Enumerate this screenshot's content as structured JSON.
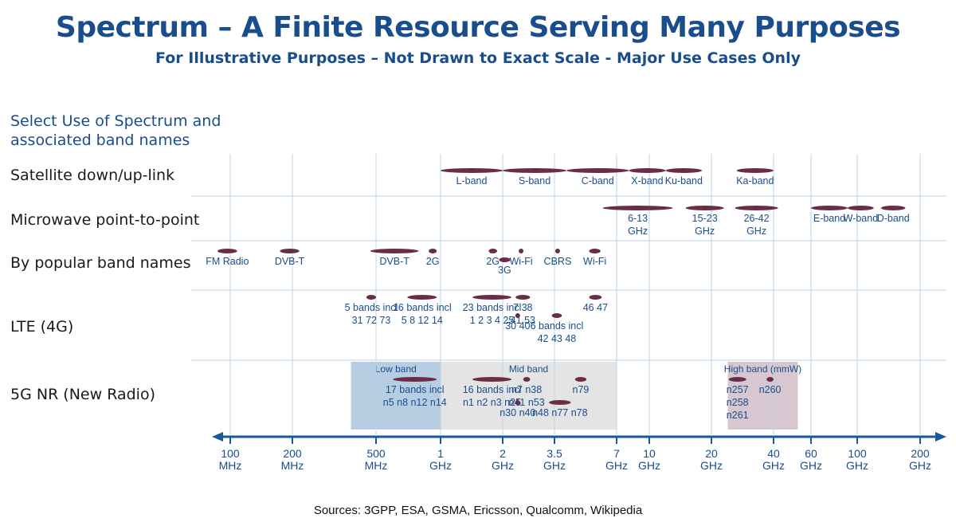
{
  "title": "Spectrum – A Finite Resource Serving Many Purposes",
  "subtitle": "For Illustrative Purposes – Not Drawn to Exact Scale - Major Use Cases Only",
  "heading": {
    "line1": "Select Use of Spectrum and",
    "line2": "associated band names"
  },
  "rows": {
    "satellite": "Satellite down/up-link",
    "microwave": "Microwave point-to-point",
    "popular": "By popular band names",
    "lte": "LTE (4G)",
    "nr": "5G NR (New Radio)"
  },
  "regions": [
    {
      "label": "Low band",
      "from": 380,
      "to": 1000,
      "color": "#b7cde1"
    },
    {
      "label": "Mid band",
      "from": 1000,
      "to": 7000,
      "color": "#e4e4e4"
    },
    {
      "label": "High band (mmW)",
      "from": 24000,
      "to": 52000,
      "color": "#d6c7d1"
    }
  ],
  "axis": {
    "unit": "MHz",
    "scale": "log",
    "ticks": [
      {
        "value": 100,
        "line1": "100",
        "line2": "MHz"
      },
      {
        "value": 200,
        "line1": "200",
        "line2": "MHz"
      },
      {
        "value": 500,
        "line1": "500",
        "line2": "MHz"
      },
      {
        "value": 1000,
        "line1": "1",
        "line2": "GHz"
      },
      {
        "value": 2000,
        "line1": "2",
        "line2": "GHz"
      },
      {
        "value": 3500,
        "line1": "3.5",
        "line2": "GHz"
      },
      {
        "value": 7000,
        "line1": "7",
        "line2": "GHz"
      },
      {
        "value": 10000,
        "line1": "10",
        "line2": "GHz"
      },
      {
        "value": 20000,
        "line1": "20",
        "line2": "GHz"
      },
      {
        "value": 40000,
        "line1": "40",
        "line2": "GHz"
      },
      {
        "value": 60000,
        "line1": "60",
        "line2": "GHz"
      },
      {
        "value": 100000,
        "line1": "100",
        "line2": "GHz"
      },
      {
        "value": 200000,
        "line1": "200",
        "line2": "GHz"
      }
    ]
  },
  "bands": [
    {
      "row": "satellite",
      "from": 1000,
      "to": 2000,
      "text": [
        "L-band"
      ]
    },
    {
      "row": "satellite",
      "from": 2000,
      "to": 4000,
      "text": [
        "S-band"
      ]
    },
    {
      "row": "satellite",
      "from": 4000,
      "to": 8000,
      "text": [
        "C-band"
      ]
    },
    {
      "row": "satellite",
      "from": 8000,
      "to": 12000,
      "text": [
        "X-band"
      ]
    },
    {
      "row": "satellite",
      "from": 12000,
      "to": 18000,
      "text": [
        "Ku-band"
      ]
    },
    {
      "row": "satellite",
      "from": 26500,
      "to": 40000,
      "text": [
        "Ka-band"
      ]
    },
    {
      "row": "microwave",
      "from": 6000,
      "to": 13000,
      "text": [
        "6-13",
        "GHz"
      ]
    },
    {
      "row": "microwave",
      "from": 15000,
      "to": 23000,
      "text": [
        "15-23",
        "GHz"
      ]
    },
    {
      "row": "microwave",
      "from": 26000,
      "to": 42000,
      "text": [
        "26-42",
        "GHz"
      ]
    },
    {
      "row": "microwave",
      "from": 60000,
      "to": 90000,
      "text": [
        "E-band"
      ]
    },
    {
      "row": "microwave",
      "from": 90000,
      "to": 120000,
      "text": [
        "W-band"
      ]
    },
    {
      "row": "microwave",
      "from": 130000,
      "to": 170000,
      "text": [
        "D-band"
      ]
    },
    {
      "row": "popular",
      "from": 88,
      "to": 108,
      "text": [
        "FM Radio"
      ]
    },
    {
      "row": "popular",
      "from": 174,
      "to": 216,
      "text": [
        "DVB-T"
      ]
    },
    {
      "row": "popular",
      "from": 470,
      "to": 790,
      "text": [
        "DVB-T"
      ]
    },
    {
      "row": "popular",
      "from": 880,
      "to": 960,
      "text": [
        "2G"
      ]
    },
    {
      "row": "popular",
      "from": 1710,
      "to": 1880,
      "text": [
        "2G"
      ]
    },
    {
      "row": "popular",
      "from": 2400,
      "to": 2480,
      "text": [
        "Wi-Fi"
      ]
    },
    {
      "row": "popular",
      "from": 1920,
      "to": 2170,
      "text": [
        "3G"
      ],
      "sub": 1
    },
    {
      "row": "popular",
      "from": 3550,
      "to": 3700,
      "text": [
        "CBRS"
      ]
    },
    {
      "row": "popular",
      "from": 5150,
      "to": 5850,
      "text": [
        "Wi-Fi"
      ]
    },
    {
      "row": "lte",
      "from": 450,
      "to": 500,
      "text": [
        "5 bands incl",
        "31 72 73"
      ]
    },
    {
      "row": "lte",
      "from": 700,
      "to": 960,
      "text": [
        "16 bands incl",
        "5 8 12 14"
      ]
    },
    {
      "row": "lte",
      "from": 1427,
      "to": 2200,
      "text": [
        "23 bands incl",
        "1 2 3 4 25"
      ]
    },
    {
      "row": "lte",
      "from": 2300,
      "to": 2690,
      "text": [
        "7 38",
        "41 53"
      ]
    },
    {
      "row": "lte",
      "from": 5150,
      "to": 5925,
      "text": [
        "46 47"
      ]
    },
    {
      "row": "lte",
      "from": 2305,
      "to": 2400,
      "text": [
        "30 40"
      ],
      "sub": 1
    },
    {
      "row": "lte",
      "from": 3400,
      "to": 3800,
      "text": [
        "6 bands incl",
        "42 43 48"
      ],
      "sub": 1
    },
    {
      "row": "nr",
      "from": 600,
      "to": 960,
      "text": [
        "17 bands incl",
        "n5 n8 n12 n14"
      ]
    },
    {
      "row": "nr",
      "from": 1427,
      "to": 2200,
      "text": [
        "16 bands incl",
        "n1 n2 n3 n25"
      ]
    },
    {
      "row": "nr",
      "from": 2496,
      "to": 2690,
      "text": [
        "n7 n38",
        "n41 n53"
      ]
    },
    {
      "row": "nr",
      "from": 4400,
      "to": 5000,
      "text": [
        "n79"
      ]
    },
    {
      "row": "nr",
      "from": 2305,
      "to": 2400,
      "text": [
        "n30 n40"
      ],
      "sub": 1
    },
    {
      "row": "nr",
      "from": 3300,
      "to": 4200,
      "text": [
        "n48 n77 n78"
      ],
      "sub": 1
    },
    {
      "row": "nr",
      "from": 24250,
      "to": 29500,
      "text": [
        "n257",
        "n258",
        "n261"
      ]
    },
    {
      "row": "nr",
      "from": 37000,
      "to": 40000,
      "text": [
        "n260"
      ]
    }
  ],
  "source": "Sources: 3GPP, ESA, GSMA, Ericsson, Qualcomm, Wikipedia",
  "colors": {
    "title": "#1a4d8c",
    "band": "#6b2d45",
    "grid": "#bcd3e8",
    "axis": "#1a5a9a",
    "label": "#1a4d8c"
  }
}
